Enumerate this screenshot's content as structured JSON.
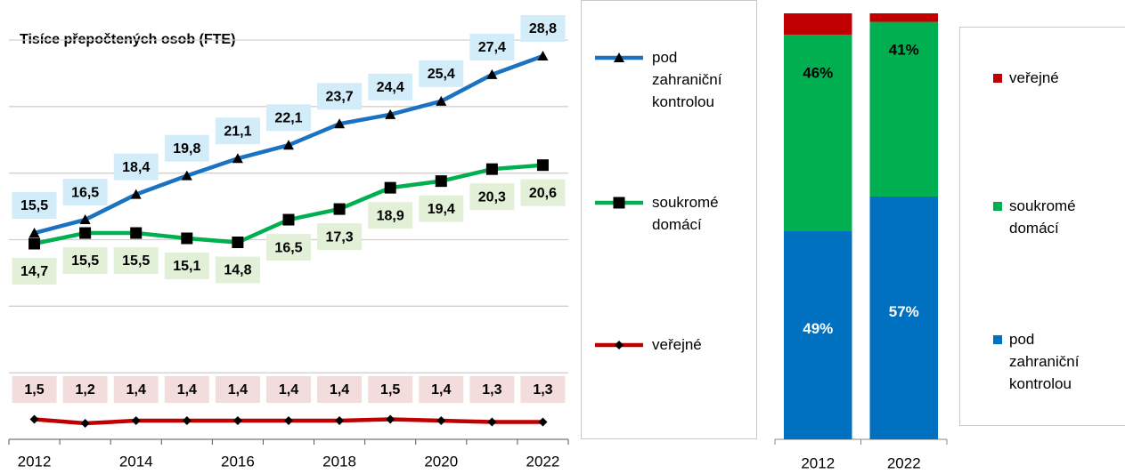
{
  "chart_data": [
    {
      "type": "line",
      "title": "Tisíce přepočtených osob (FTE)",
      "categories": [
        "2012",
        null,
        "2014",
        null,
        "2016",
        null,
        "2018",
        null,
        "2020",
        null,
        "2022"
      ],
      "series": [
        {
          "name": "pod zahraniční kontrolou",
          "color": "#1a72c0",
          "marker": "triangle",
          "values": [
            15.5,
            16.5,
            18.4,
            19.8,
            21.1,
            22.1,
            23.7,
            24.4,
            25.4,
            27.4,
            28.8
          ],
          "value_labels": [
            "15,5",
            "16,5",
            "18,4",
            "19,8",
            "21,1",
            "22,1",
            "23,7",
            "24,4",
            "25,4",
            "27,4",
            "28,8"
          ]
        },
        {
          "name": "soukromé domácí",
          "color": "#00b050",
          "marker": "square",
          "values": [
            14.7,
            15.5,
            15.5,
            15.1,
            14.8,
            16.5,
            17.3,
            18.9,
            19.4,
            20.3,
            20.6
          ],
          "value_labels": [
            "14,7",
            "15,5",
            "15,5",
            "15,1",
            "14,8",
            "16,5",
            "17,3",
            "18,9",
            "19,4",
            "20,3",
            "20,6"
          ]
        },
        {
          "name": "veřejné",
          "color": "#c00000",
          "marker": "diamond",
          "values": [
            1.5,
            1.2,
            1.4,
            1.4,
            1.4,
            1.4,
            1.4,
            1.5,
            1.4,
            1.3,
            1.3
          ],
          "value_labels": [
            "1,5",
            "1,2",
            "1,4",
            "1,4",
            "1,4",
            "1,4",
            "1,4",
            "1,5",
            "1,4",
            "1,3",
            "1,3"
          ]
        }
      ],
      "ylim": [
        0,
        30
      ],
      "yticks": [
        0,
        5,
        10,
        15,
        20,
        25,
        30
      ],
      "grid": true,
      "legend": "right"
    },
    {
      "type": "bar",
      "stacked": true,
      "categories": [
        "2012",
        "2022"
      ],
      "series": [
        {
          "name": "pod zahraniční kontrolou",
          "color": "#0070c0",
          "values": [
            49,
            57
          ],
          "value_labels": [
            "49%",
            "57%"
          ]
        },
        {
          "name": "soukromé domácí",
          "color": "#00b050",
          "values": [
            46,
            41
          ],
          "value_labels": [
            "46%",
            "41%"
          ]
        },
        {
          "name": "veřejné",
          "color": "#c00000",
          "values": [
            5,
            2
          ]
        }
      ],
      "ylim": [
        0,
        100
      ],
      "legend": "right"
    }
  ]
}
